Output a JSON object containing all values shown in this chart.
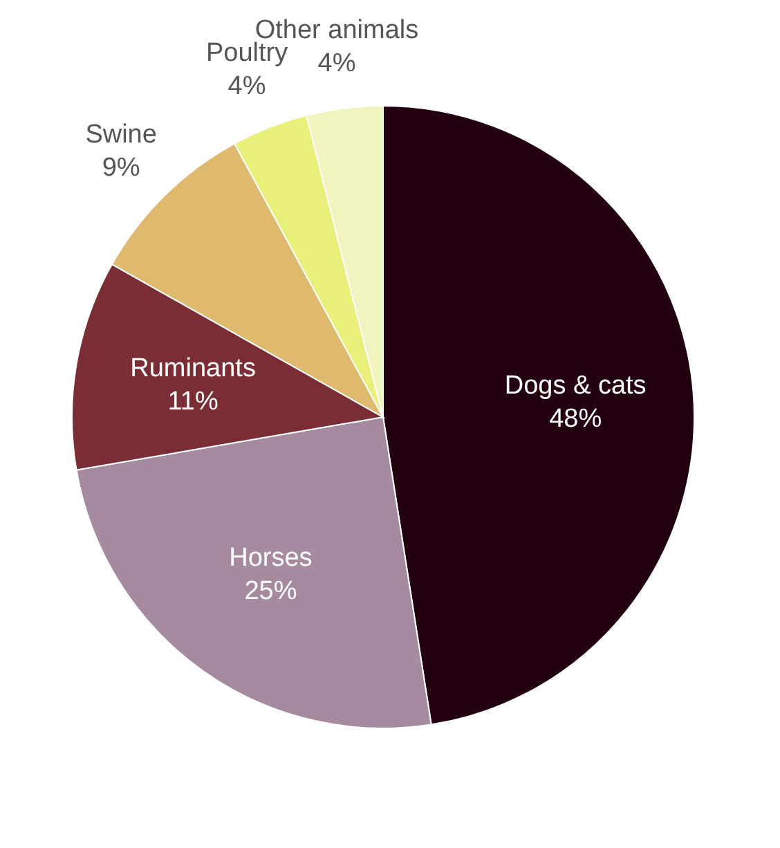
{
  "chart_data": {
    "type": "pie",
    "categories": [
      "Dogs & cats",
      "Horses",
      "Ruminants",
      "Swine",
      "Poultry",
      "Other animals"
    ],
    "values": [
      48,
      25,
      11,
      9,
      4,
      4
    ],
    "value_labels": [
      "48%",
      "25%",
      "11%",
      "9%",
      "4%",
      "4%"
    ],
    "colors": [
      "#220010",
      "#a68ba0",
      "#7b2d35",
      "#dfb96e",
      "#e8f07a",
      "#f2f4c0"
    ],
    "legend": false
  }
}
